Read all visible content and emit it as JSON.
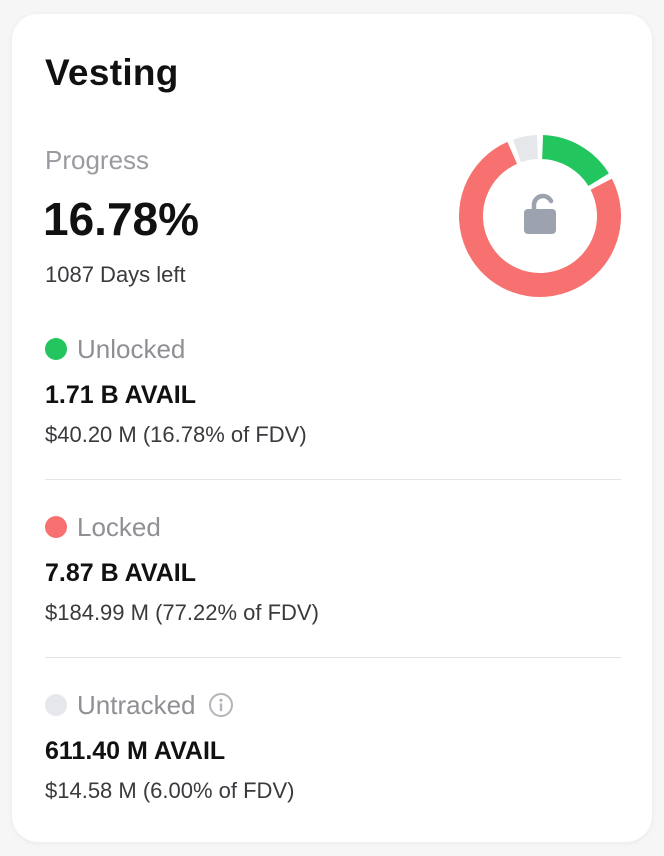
{
  "card": {
    "title": "Vesting",
    "progress_label": "Progress",
    "progress_value": "16.78%",
    "days_left": "1087 Days left"
  },
  "donut": {
    "segments": [
      {
        "name": "Unlocked",
        "fraction": 0.1678,
        "color": "#22c55e"
      },
      {
        "name": "Locked",
        "fraction": 0.7722,
        "color": "#f87171"
      },
      {
        "name": "Untracked",
        "fraction": 0.06,
        "color": "#e5e7eb"
      }
    ],
    "center_icon": "unlock-icon",
    "icon_color": "#9ca3af"
  },
  "sections": [
    {
      "label": "Unlocked",
      "color": "#22c55e",
      "amount": "1.71 B AVAIL",
      "usd": "$40.20 M (16.78% of FDV)"
    },
    {
      "label": "Locked",
      "color": "#f87171",
      "amount": "7.87 B AVAIL",
      "usd": "$184.99 M (77.22% of FDV)"
    },
    {
      "label": "Untracked",
      "color": "#e5e7eb",
      "amount": "611.40 M AVAIL",
      "usd": "$14.58 M (6.00% of FDV)",
      "icon": "info-icon"
    }
  ]
}
